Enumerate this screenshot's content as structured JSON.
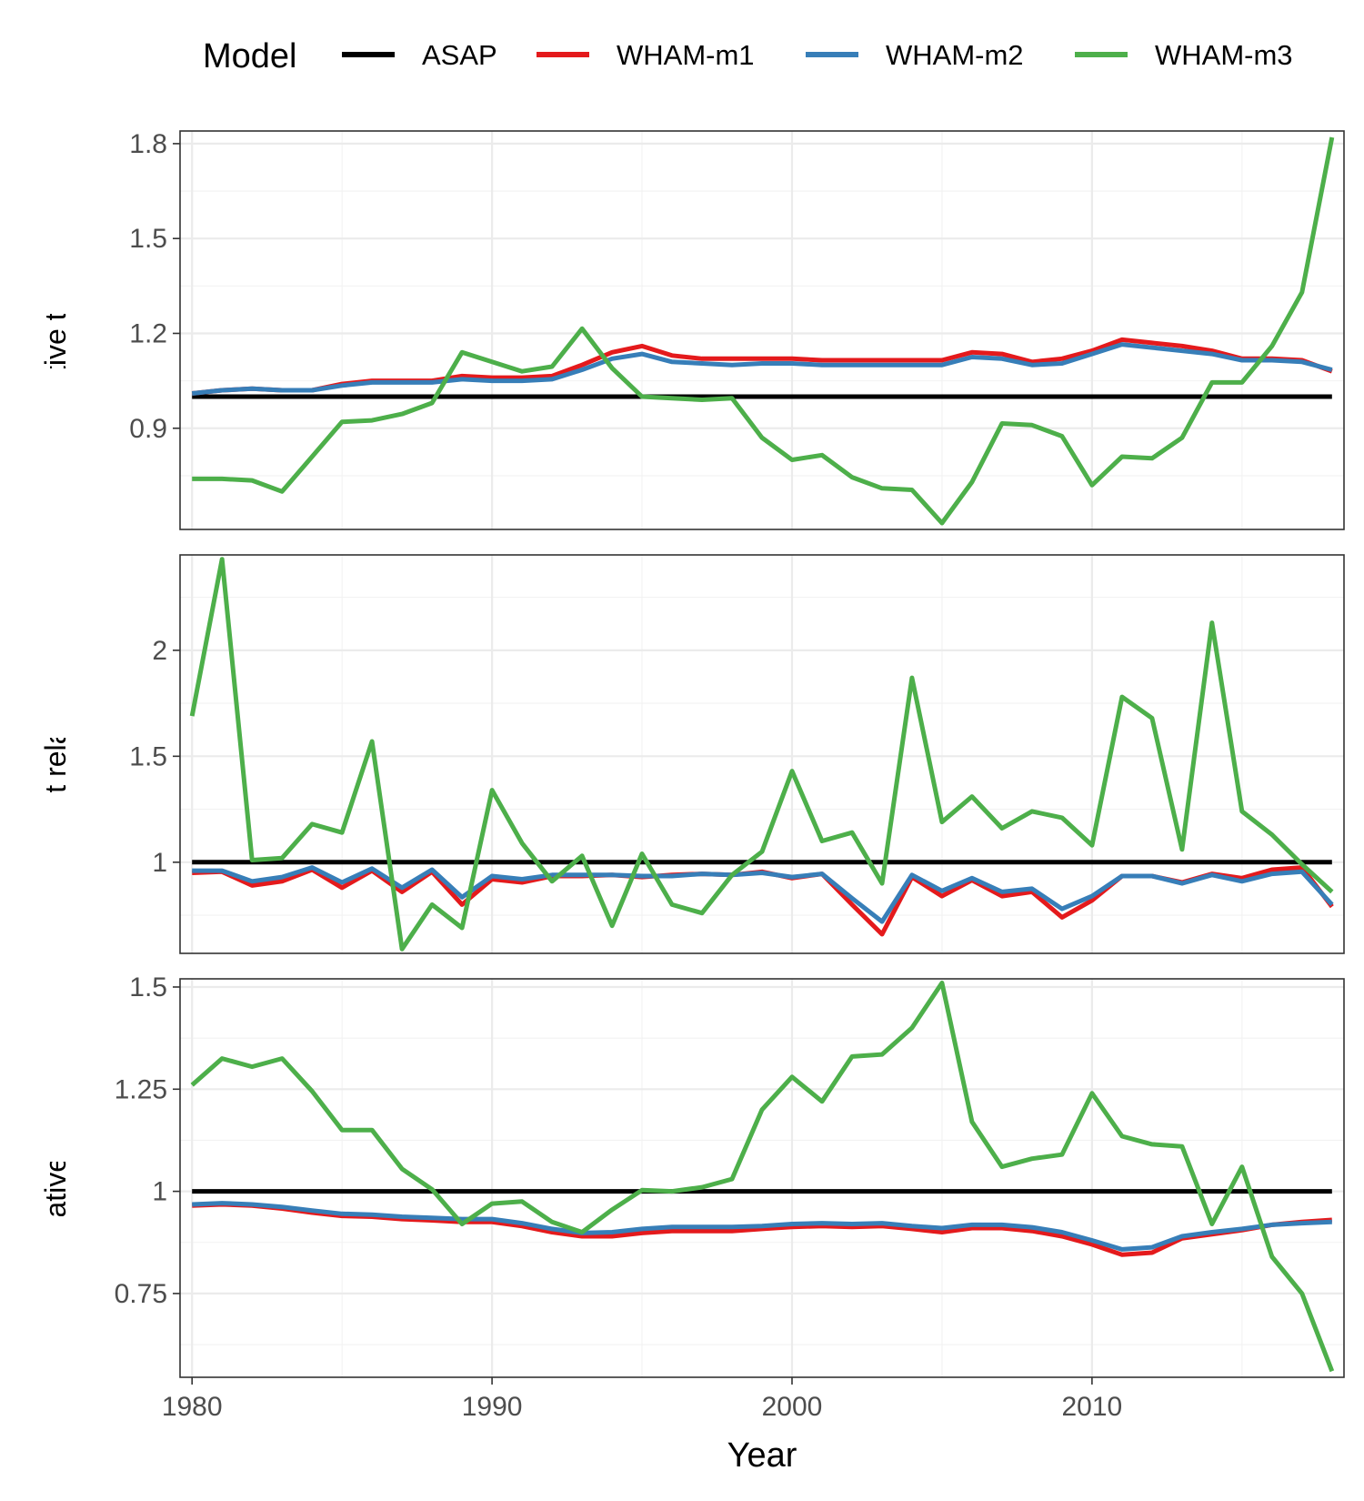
{
  "chart_data": {
    "type": "line",
    "xlabel": "Year",
    "x_ticks": [
      1980,
      1990,
      2000,
      2010
    ],
    "xlim": [
      1979.6,
      2018.4
    ],
    "legend": {
      "title": "Model",
      "position": "top",
      "entries": [
        {
          "name": "ASAP",
          "color": "#000000"
        },
        {
          "name": "WHAM-m1",
          "color": "#e41a1c"
        },
        {
          "name": "WHAM-m2",
          "color": "#377eb8"
        },
        {
          "name": "WHAM-m3",
          "color": "#4daf4a"
        }
      ]
    },
    "x": [
      1980,
      1981,
      1982,
      1983,
      1984,
      1985,
      1986,
      1987,
      1988,
      1989,
      1990,
      1991,
      1992,
      1993,
      1994,
      1995,
      1996,
      1997,
      1998,
      1999,
      2000,
      2001,
      2002,
      2003,
      2004,
      2005,
      2006,
      2007,
      2008,
      2009,
      2010,
      2011,
      2012,
      2013,
      2014,
      2015,
      2016,
      2017,
      2018
    ],
    "panels": [
      {
        "ylabel": "F relative to ASAP",
        "ylim": [
          0.58,
          1.84
        ],
        "y_ticks": [
          0.9,
          1.2,
          1.5,
          1.8
        ],
        "y_tick_labels": [
          "0.9",
          "1.2",
          "1.5",
          "1.8"
        ],
        "series": [
          {
            "name": "ASAP",
            "values": [
              1,
              1,
              1,
              1,
              1,
              1,
              1,
              1,
              1,
              1,
              1,
              1,
              1,
              1,
              1,
              1,
              1,
              1,
              1,
              1,
              1,
              1,
              1,
              1,
              1,
              1,
              1,
              1,
              1,
              1,
              1,
              1,
              1,
              1,
              1,
              1,
              1,
              1,
              1
            ]
          },
          {
            "name": "WHAM-m1",
            "values": [
              1.01,
              1.02,
              1.025,
              1.02,
              1.02,
              1.04,
              1.05,
              1.05,
              1.05,
              1.065,
              1.06,
              1.06,
              1.065,
              1.1,
              1.14,
              1.16,
              1.13,
              1.12,
              1.12,
              1.12,
              1.12,
              1.115,
              1.115,
              1.115,
              1.115,
              1.115,
              1.14,
              1.135,
              1.11,
              1.12,
              1.145,
              1.18,
              1.17,
              1.16,
              1.145,
              1.12,
              1.12,
              1.115,
              1.08
            ]
          },
          {
            "name": "WHAM-m2",
            "values": [
              1.01,
              1.02,
              1.025,
              1.02,
              1.02,
              1.035,
              1.045,
              1.045,
              1.045,
              1.055,
              1.05,
              1.05,
              1.055,
              1.085,
              1.12,
              1.135,
              1.11,
              1.105,
              1.1,
              1.105,
              1.105,
              1.1,
              1.1,
              1.1,
              1.1,
              1.1,
              1.125,
              1.12,
              1.1,
              1.105,
              1.135,
              1.165,
              1.155,
              1.145,
              1.135,
              1.115,
              1.115,
              1.11,
              1.085
            ]
          },
          {
            "name": "WHAM-m3",
            "values": [
              0.74,
              0.74,
              0.735,
              0.7,
              0.81,
              0.92,
              0.925,
              0.945,
              0.98,
              1.14,
              1.11,
              1.08,
              1.095,
              1.215,
              1.09,
              1.0,
              0.995,
              0.99,
              0.995,
              0.87,
              0.8,
              0.815,
              0.745,
              0.71,
              0.705,
              0.6,
              0.73,
              0.915,
              0.91,
              0.875,
              0.72,
              0.81,
              0.805,
              0.87,
              1.045,
              1.045,
              1.16,
              1.33,
              1.82
            ]
          }
        ]
      },
      {
        "ylabel": "Recruitment relative to ASAP",
        "ylim": [
          0.57,
          2.45
        ],
        "y_ticks": [
          1,
          1.5,
          2
        ],
        "y_tick_labels": [
          "1",
          "1.5",
          "2"
        ],
        "series": [
          {
            "name": "ASAP",
            "values": [
              1,
              1,
              1,
              1,
              1,
              1,
              1,
              1,
              1,
              1,
              1,
              1,
              1,
              1,
              1,
              1,
              1,
              1,
              1,
              1,
              1,
              1,
              1,
              1,
              1,
              1,
              1,
              1,
              1,
              1,
              1,
              1,
              1,
              1,
              1,
              1,
              1,
              1,
              1
            ]
          },
          {
            "name": "WHAM-m1",
            "values": [
              0.95,
              0.955,
              0.89,
              0.91,
              0.965,
              0.88,
              0.96,
              0.86,
              0.955,
              0.8,
              0.92,
              0.905,
              0.935,
              0.935,
              0.94,
              0.93,
              0.94,
              0.945,
              0.94,
              0.955,
              0.925,
              0.945,
              0.8,
              0.66,
              0.93,
              0.84,
              0.915,
              0.84,
              0.86,
              0.74,
              0.82,
              0.935,
              0.935,
              0.905,
              0.945,
              0.925,
              0.965,
              0.975,
              0.79
            ]
          },
          {
            "name": "WHAM-m2",
            "values": [
              0.96,
              0.96,
              0.91,
              0.93,
              0.975,
              0.905,
              0.97,
              0.88,
              0.965,
              0.835,
              0.935,
              0.92,
              0.94,
              0.94,
              0.94,
              0.935,
              0.935,
              0.945,
              0.94,
              0.95,
              0.93,
              0.945,
              0.83,
              0.72,
              0.94,
              0.865,
              0.925,
              0.86,
              0.875,
              0.78,
              0.84,
              0.935,
              0.935,
              0.9,
              0.94,
              0.91,
              0.945,
              0.955,
              0.8
            ]
          },
          {
            "name": "WHAM-m3",
            "values": [
              1.69,
              2.43,
              1.01,
              1.02,
              1.18,
              1.14,
              1.57,
              0.59,
              0.8,
              0.69,
              1.34,
              1.09,
              0.91,
              1.03,
              0.7,
              1.04,
              0.8,
              0.76,
              0.94,
              1.05,
              1.43,
              1.1,
              1.14,
              0.9,
              1.87,
              1.19,
              1.31,
              1.16,
              1.24,
              1.21,
              1.08,
              1.78,
              1.68,
              1.06,
              2.13,
              1.24,
              1.13,
              0.99,
              0.86
            ]
          }
        ]
      },
      {
        "ylabel": "SSB relative to ASAP",
        "ylim": [
          0.545,
          1.52
        ],
        "y_ticks": [
          0.75,
          1,
          1.25,
          1.5
        ],
        "y_tick_labels": [
          "0.75",
          "1",
          "1.25",
          "1.5"
        ],
        "series": [
          {
            "name": "ASAP",
            "values": [
              1,
              1,
              1,
              1,
              1,
              1,
              1,
              1,
              1,
              1,
              1,
              1,
              1,
              1,
              1,
              1,
              1,
              1,
              1,
              1,
              1,
              1,
              1,
              1,
              1,
              1,
              1,
              1,
              1,
              1,
              1,
              1,
              1,
              1,
              1,
              1,
              1,
              1,
              1
            ]
          },
          {
            "name": "WHAM-m1",
            "values": [
              0.965,
              0.968,
              0.965,
              0.958,
              0.948,
              0.94,
              0.938,
              0.932,
              0.929,
              0.925,
              0.925,
              0.915,
              0.9,
              0.89,
              0.89,
              0.898,
              0.903,
              0.903,
              0.903,
              0.908,
              0.913,
              0.915,
              0.913,
              0.915,
              0.908,
              0.9,
              0.91,
              0.91,
              0.903,
              0.89,
              0.87,
              0.845,
              0.85,
              0.885,
              0.895,
              0.905,
              0.918,
              0.925,
              0.93
            ]
          },
          {
            "name": "WHAM-m2",
            "values": [
              0.968,
              0.971,
              0.968,
              0.962,
              0.953,
              0.945,
              0.943,
              0.938,
              0.935,
              0.932,
              0.932,
              0.922,
              0.908,
              0.898,
              0.9,
              0.908,
              0.913,
              0.913,
              0.913,
              0.915,
              0.92,
              0.922,
              0.92,
              0.922,
              0.915,
              0.91,
              0.918,
              0.918,
              0.912,
              0.9,
              0.88,
              0.858,
              0.863,
              0.89,
              0.9,
              0.908,
              0.918,
              0.922,
              0.925
            ]
          },
          {
            "name": "WHAM-m3",
            "values": [
              1.26,
              1.325,
              1.305,
              1.325,
              1.245,
              1.15,
              1.15,
              1.055,
              1.005,
              0.92,
              0.97,
              0.975,
              0.925,
              0.9,
              0.955,
              1.003,
              1.0,
              1.01,
              1.03,
              1.2,
              1.28,
              1.22,
              1.33,
              1.335,
              1.4,
              1.51,
              1.17,
              1.06,
              1.08,
              1.09,
              1.24,
              1.135,
              1.115,
              1.11,
              0.92,
              1.06,
              0.84,
              0.75,
              0.56
            ]
          }
        ]
      }
    ]
  }
}
